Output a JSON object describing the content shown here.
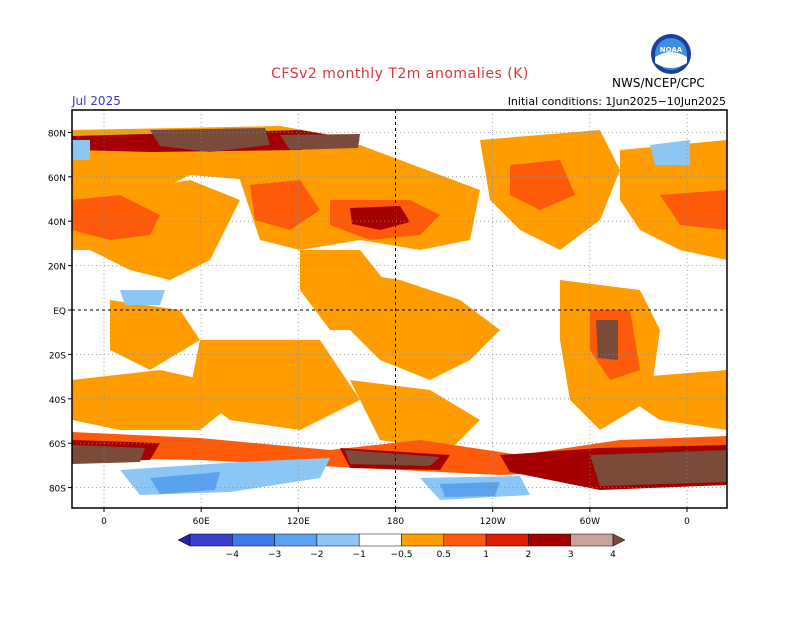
{
  "title": "CFSv2 monthly T2m anomalies (K)",
  "month": "Jul 2025",
  "initial_conditions": "Initial conditions: 1Jun2025−10Jun2025",
  "agency": "NWS/NCEP/CPC",
  "logo_text": "NOAA",
  "colors": {
    "title": "#d43838",
    "month": "#3a3acc",
    "frame": "#000000"
  },
  "lat_labels": [
    {
      "value": 80,
      "label": "80N"
    },
    {
      "value": 60,
      "label": "60N"
    },
    {
      "value": 40,
      "label": "40N"
    },
    {
      "value": 20,
      "label": "20N"
    },
    {
      "value": 0,
      "label": "EQ"
    },
    {
      "value": -20,
      "label": "20S"
    },
    {
      "value": -40,
      "label": "40S"
    },
    {
      "value": -60,
      "label": "60S"
    },
    {
      "value": -80,
      "label": "80S"
    }
  ],
  "lon_labels": [
    {
      "value": 0,
      "label": "0"
    },
    {
      "value": 60,
      "label": "60E"
    },
    {
      "value": 120,
      "label": "120E"
    },
    {
      "value": 180,
      "label": "180"
    },
    {
      "value": 240,
      "label": "120W"
    },
    {
      "value": 300,
      "label": "60W"
    },
    {
      "value": 360,
      "label": "0"
    }
  ],
  "colorbar": {
    "labels": [
      "−4",
      "−3",
      "−2",
      "−1",
      "−0.5",
      "0.5",
      "1",
      "2",
      "3",
      "4"
    ],
    "colors": [
      "#2a1fa8",
      "#3a3fd0",
      "#3f7ae6",
      "#5aa2f0",
      "#8cc6f5",
      "#ffffff",
      "#ff9c00",
      "#ff5a0a",
      "#e01e00",
      "#a50000",
      "#c9a29a",
      "#7a4a3a"
    ]
  }
}
